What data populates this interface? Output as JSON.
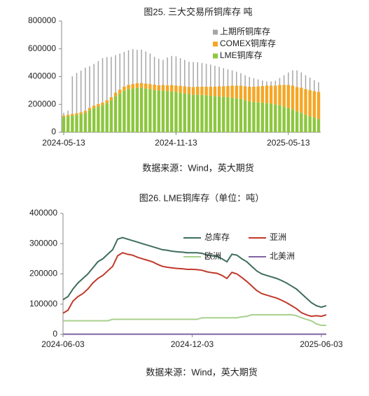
{
  "chart_data": [
    {
      "type": "stacked_bar",
      "title": "图25. 三大交易所铜库存  吨",
      "source": "数据来源：Wind，英大期货",
      "categories": [
        "2024-05-13",
        null,
        null,
        null,
        null,
        null,
        null,
        null,
        null,
        null,
        null,
        null,
        null,
        null,
        null,
        null,
        null,
        null,
        null,
        null,
        null,
        null,
        null,
        null,
        null,
        null,
        "2024-11-13",
        null,
        null,
        null,
        null,
        null,
        null,
        null,
        null,
        null,
        null,
        null,
        null,
        null,
        null,
        null,
        null,
        null,
        null,
        null,
        null,
        null,
        null,
        null,
        null,
        null,
        "2025-05-13",
        null,
        null,
        null,
        null,
        null,
        null,
        null
      ],
      "ylim": [
        0,
        800000
      ],
      "yticks": [
        0,
        200000,
        400000,
        600000,
        800000
      ],
      "series": [
        {
          "name": "LME铜库存",
          "color": "#8dc63f",
          "values": [
            110000,
            115000,
            120000,
            125000,
            130000,
            140000,
            160000,
            175000,
            185000,
            195000,
            210000,
            230000,
            260000,
            280000,
            300000,
            310000,
            315000,
            320000,
            320000,
            315000,
            310000,
            305000,
            300000,
            300000,
            295000,
            295000,
            290000,
            285000,
            280000,
            275000,
            270000,
            270000,
            268000,
            265000,
            262000,
            260000,
            258000,
            255000,
            252000,
            250000,
            245000,
            240000,
            230000,
            222000,
            218000,
            215000,
            212000,
            210000,
            205000,
            200000,
            195000,
            185000,
            175000,
            165000,
            150000,
            140000,
            125000,
            115000,
            105000,
            95000
          ]
        },
        {
          "name": "COMEX铜库存",
          "color": "#f5a623",
          "values": [
            10000,
            10000,
            12000,
            12000,
            13000,
            14000,
            15000,
            16000,
            17000,
            18000,
            20000,
            22000,
            24000,
            26000,
            28000,
            30000,
            32000,
            33000,
            34000,
            35000,
            36000,
            37000,
            38000,
            40000,
            42000,
            44000,
            46000,
            48000,
            50000,
            52000,
            55000,
            58000,
            60000,
            62000,
            65000,
            68000,
            72000,
            76000,
            80000,
            85000,
            90000,
            95000,
            100000,
            105000,
            110000,
            115000,
            120000,
            125000,
            130000,
            135000,
            145000,
            155000,
            165000,
            170000,
            175000,
            180000,
            185000,
            188000,
            190000,
            195000
          ]
        },
        {
          "name": "上期所铜库存",
          "color": "#a6a6a6",
          "values": [
            20000,
            30000,
            270000,
            290000,
            300000,
            310000,
            300000,
            300000,
            310000,
            320000,
            310000,
            290000,
            270000,
            260000,
            250000,
            250000,
            250000,
            240000,
            240000,
            230000,
            220000,
            200000,
            190000,
            180000,
            200000,
            210000,
            210000,
            200000,
            190000,
            180000,
            180000,
            175000,
            170000,
            165000,
            160000,
            150000,
            140000,
            130000,
            120000,
            110000,
            100000,
            90000,
            80000,
            70000,
            60000,
            50000,
            40000,
            30000,
            30000,
            35000,
            50000,
            70000,
            90000,
            110000,
            120000,
            110000,
            100000,
            90000,
            80000,
            70000
          ]
        }
      ]
    },
    {
      "type": "line",
      "title": "图26. LME铜库存（单位：吨）",
      "source": "数据来源：Wind，英大期货",
      "categories": [
        "2024-06-03",
        null,
        null,
        null,
        null,
        null,
        null,
        null,
        null,
        null,
        null,
        null,
        null,
        null,
        null,
        null,
        null,
        null,
        null,
        null,
        null,
        null,
        null,
        null,
        null,
        null,
        "2024-12-03",
        null,
        null,
        null,
        null,
        null,
        null,
        null,
        null,
        null,
        null,
        null,
        null,
        null,
        null,
        null,
        null,
        null,
        null,
        null,
        null,
        null,
        null,
        null,
        null,
        null,
        "2025-06-03",
        null
      ],
      "ylim": [
        0,
        400000
      ],
      "yticks": [
        0,
        100000,
        200000,
        300000,
        400000
      ],
      "series": [
        {
          "name": "总库存",
          "color": "#3e6e5c",
          "values": [
            115000,
            125000,
            150000,
            170000,
            185000,
            200000,
            220000,
            240000,
            250000,
            265000,
            280000,
            315000,
            320000,
            315000,
            310000,
            305000,
            300000,
            295000,
            290000,
            285000,
            280000,
            278000,
            275000,
            273000,
            272000,
            270000,
            270000,
            270000,
            268000,
            262000,
            260000,
            258000,
            250000,
            240000,
            265000,
            262000,
            250000,
            240000,
            225000,
            210000,
            200000,
            195000,
            190000,
            185000,
            178000,
            170000,
            160000,
            150000,
            135000,
            120000,
            105000,
            95000,
            90000,
            95000
          ]
        },
        {
          "name": "亚洲",
          "color": "#c0392b",
          "values": [
            70000,
            80000,
            110000,
            125000,
            135000,
            150000,
            170000,
            185000,
            195000,
            210000,
            225000,
            260000,
            270000,
            265000,
            262000,
            255000,
            250000,
            245000,
            240000,
            232000,
            225000,
            222000,
            220000,
            218000,
            217000,
            215000,
            215000,
            214000,
            212000,
            207000,
            204000,
            202000,
            195000,
            185000,
            205000,
            200000,
            188000,
            175000,
            160000,
            145000,
            135000,
            130000,
            125000,
            120000,
            113000,
            105000,
            95000,
            85000,
            72000,
            65000,
            60000,
            62000,
            60000,
            65000
          ]
        },
        {
          "name": "欧洲",
          "color": "#a8d08d",
          "values": [
            45000,
            45000,
            45000,
            45000,
            45000,
            45000,
            45000,
            45000,
            45000,
            45000,
            50000,
            50000,
            50000,
            50000,
            50000,
            50000,
            50000,
            50000,
            50000,
            50000,
            50000,
            50000,
            50000,
            50000,
            50000,
            50000,
            50000,
            50000,
            55000,
            55000,
            55000,
            55000,
            55000,
            55000,
            55000,
            55000,
            58000,
            60000,
            65000,
            65000,
            65000,
            65000,
            65000,
            65000,
            65000,
            65000,
            65000,
            62000,
            55000,
            50000,
            45000,
            35000,
            30000,
            30000
          ]
        },
        {
          "name": "北美洲",
          "color": "#8064a2",
          "values": [
            1000,
            1000,
            1000,
            1000,
            1000,
            1000,
            1000,
            1000,
            1000,
            1000,
            1000,
            1000,
            1000,
            1000,
            1000,
            1000,
            1000,
            1000,
            1000,
            1000,
            1000,
            1000,
            1000,
            1000,
            1000,
            1000,
            1000,
            1000,
            1000,
            1000,
            1000,
            1000,
            1000,
            1000,
            1000,
            1000,
            1000,
            1000,
            1000,
            1000,
            1000,
            1000,
            1000,
            1000,
            1000,
            1000,
            1000,
            1000,
            1000,
            1000,
            1000,
            1000,
            1000,
            1000
          ]
        }
      ]
    }
  ]
}
